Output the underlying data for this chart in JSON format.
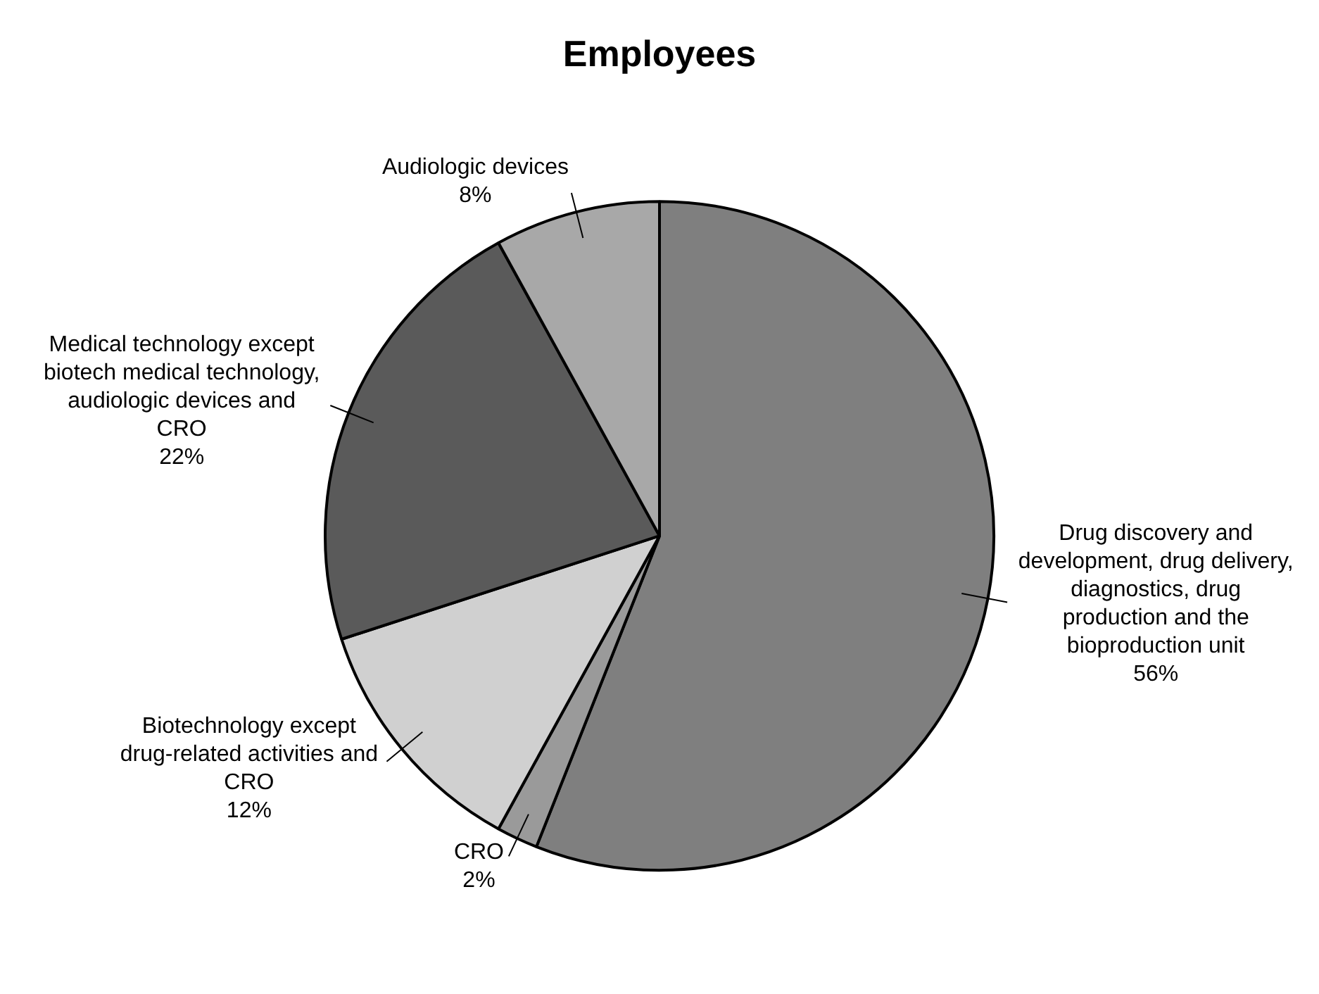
{
  "chart_data": {
    "type": "pie",
    "title": "Employees",
    "categories": [
      "Drug discovery and development, drug delivery, diagnostics, drug production and the bioproduction unit",
      "CRO",
      "Biotechnology except drug-related activities and CRO",
      "Medical technology except biotech medical technology, audiologic devices and CRO",
      "Audiologic devices"
    ],
    "values": [
      56,
      2,
      12,
      22,
      8
    ],
    "value_labels": [
      "56%",
      "2%",
      "12%",
      "22%",
      "8%"
    ],
    "colors": [
      "#7f7f7f",
      "#9a9a9a",
      "#d0d0d0",
      "#5a5a5a",
      "#a8a8a8"
    ],
    "legend": false
  }
}
